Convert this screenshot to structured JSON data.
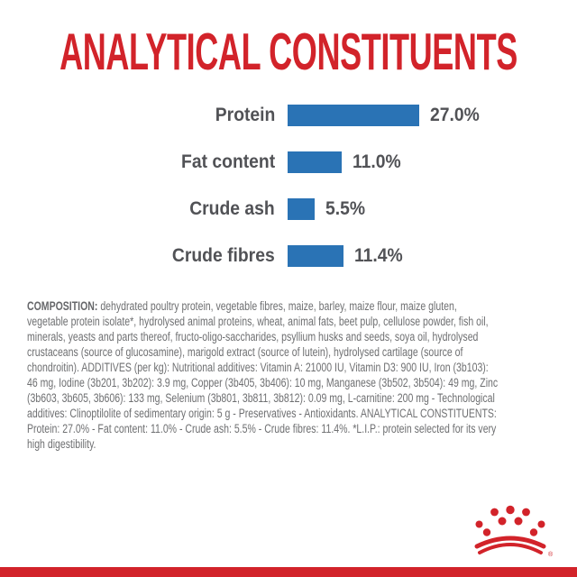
{
  "page": {
    "background": "#ffffff",
    "accent_red": "#d2232a",
    "bar_blue": "#2a73b5",
    "label_gray": "#515256",
    "body_gray": "#6e6f71"
  },
  "title": "ANALYTICAL CONSTITUENTS",
  "chart_data": {
    "type": "bar",
    "orientation": "horizontal",
    "title": "ANALYTICAL CONSTITUENTS",
    "categories": [
      "Protein",
      "Fat content",
      "Crude ash",
      "Crude fibres"
    ],
    "values": [
      27.0,
      11.0,
      5.5,
      11.4
    ],
    "value_labels": [
      "27.0%",
      "11.0%",
      "5.5%",
      "11.4%"
    ],
    "unit": "%",
    "bar_color": "#2a73b5",
    "axis": "none",
    "grid": false,
    "legend": "none"
  },
  "composition": {
    "lines": [
      {
        "bold": "COMPOSITION:",
        "text": " dehydrated poultry protein, vegetable fibres, maize, barley, maize flour, maize gluten,"
      },
      {
        "bold": "",
        "text": "vegetable protein isolate*, hydrolysed animal proteins, wheat, animal fats, beet pulp, cellulose powder, fish oil,"
      },
      {
        "bold": "",
        "text": "minerals, yeasts and parts thereof, fructo-oligo-saccharides, psyllium husks and seeds, soya oil, hydrolysed"
      },
      {
        "bold": "",
        "text": "crustaceans (source of glucosamine), marigold extract (source of lutein), hydrolysed cartilage (source of"
      },
      {
        "bold": "",
        "text": "chondroitin). ADDITIVES (per kg): Nutritional additives: Vitamin A: 21000 IU, Vitamin D3: 900 IU, Iron (3b103):"
      },
      {
        "bold": "",
        "text": "46 mg, Iodine (3b201, 3b202): 3.9 mg, Copper (3b405, 3b406): 10 mg, Manganese (3b502, 3b504): 49 mg, Zinc"
      },
      {
        "bold": "",
        "text": "(3b603, 3b605, 3b606): 133 mg, Selenium (3b801, 3b811, 3b812): 0.09 mg, L-carnitine: 200 mg - Technological"
      },
      {
        "bold": "",
        "text": "additives: Clinoptilolite of sedimentary origin: 5 g - Preservatives - Antioxidants. ANALYTICAL CONSTITUENTS:"
      },
      {
        "bold": "",
        "text": "Protein: 27.0% - Fat content: 11.0% - Crude ash: 5.5% - Crude fibres: 11.4%. *L.I.P.: protein selected for its very"
      },
      {
        "bold": "",
        "text": "high digestibility."
      }
    ]
  },
  "footer": {
    "logo_name": "royal-canin-crown-logo",
    "registered_mark": "®",
    "logo_color": "#d2232a"
  }
}
